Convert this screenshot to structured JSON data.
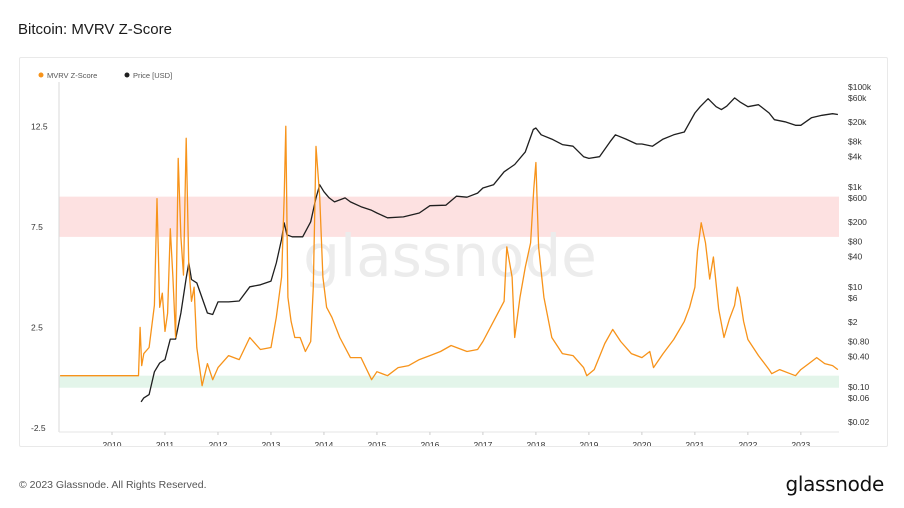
{
  "header": {
    "title": "Bitcoin: MVRV Z-Score"
  },
  "footer": {
    "copyright": "© 2023 Glassnode. All Rights Reserved.",
    "brand": "glassnode"
  },
  "watermark": "glassnode",
  "colors": {
    "zscore": "#f7931a",
    "price": "#1f1f1f",
    "red_band": "#fde1e1",
    "green_band": "#e3f5ea"
  },
  "chart_data": {
    "type": "line",
    "title": "Bitcoin: MVRV Z-Score",
    "legend": {
      "position": "top-left",
      "entries": [
        "MVRV Z-Score",
        "Price [USD]"
      ]
    },
    "x_ticks": [
      "2010",
      "2011",
      "2012",
      "2013",
      "2014",
      "2015",
      "2016",
      "2017",
      "2018",
      "2019",
      "2020",
      "2021",
      "2022",
      "2023"
    ],
    "xlim": [
      2009.0,
      2023.72
    ],
    "left_axis": {
      "ticks": [
        "12.5",
        "7.5",
        "2.5",
        "-2.5"
      ],
      "tick_values": [
        12.5,
        7.5,
        2.5,
        -2.5
      ],
      "ylim": [
        -2.7,
        14.7
      ]
    },
    "right_axis": {
      "scale": "log",
      "ticks": [
        "$100k",
        "$60k",
        "$20k",
        "$8k",
        "$4k",
        "$1k",
        "$600",
        "$200",
        "$80",
        "$40",
        "$10",
        "$6",
        "$2",
        "$0.80",
        "$0.40",
        "$0.10",
        "$0.06",
        "$0.02"
      ],
      "tick_values": [
        100000,
        60000,
        20000,
        8000,
        4000,
        1000,
        600,
        200,
        80,
        40,
        10,
        6,
        2,
        0.8,
        0.4,
        0.1,
        0.06,
        0.02
      ]
    },
    "bands": [
      {
        "name": "red_zone",
        "from": 7.0,
        "to": 9.0
      },
      {
        "name": "green_zone",
        "from": -0.5,
        "to": 0.1
      }
    ],
    "series": [
      {
        "name": "MVRV Z-Score",
        "x": [
          2009.02,
          2010.5,
          2010.53,
          2010.56,
          2010.6,
          2010.7,
          2010.8,
          2010.85,
          2010.9,
          2010.95,
          2011.0,
          2011.05,
          2011.1,
          2011.15,
          2011.2,
          2011.25,
          2011.3,
          2011.35,
          2011.4,
          2011.45,
          2011.5,
          2011.55,
          2011.6,
          2011.7,
          2011.8,
          2011.9,
          2012.0,
          2012.2,
          2012.4,
          2012.6,
          2012.8,
          2013.0,
          2013.1,
          2013.2,
          2013.25,
          2013.28,
          2013.32,
          2013.38,
          2013.45,
          2013.55,
          2013.65,
          2013.75,
          2013.8,
          2013.85,
          2013.92,
          2013.98,
          2014.05,
          2014.15,
          2014.3,
          2014.5,
          2014.7,
          2014.9,
          2015.0,
          2015.2,
          2015.4,
          2015.6,
          2015.8,
          2016.0,
          2016.2,
          2016.4,
          2016.5,
          2016.7,
          2016.9,
          2017.0,
          2017.2,
          2017.4,
          2017.45,
          2017.55,
          2017.6,
          2017.7,
          2017.8,
          2017.9,
          2017.96,
          2018.0,
          2018.05,
          2018.15,
          2018.3,
          2018.5,
          2018.7,
          2018.9,
          2018.96,
          2019.1,
          2019.3,
          2019.45,
          2019.6,
          2019.8,
          2020.0,
          2020.15,
          2020.22,
          2020.4,
          2020.6,
          2020.8,
          2020.9,
          2021.0,
          2021.05,
          2021.12,
          2021.2,
          2021.28,
          2021.35,
          2021.45,
          2021.55,
          2021.65,
          2021.75,
          2021.8,
          2021.85,
          2021.92,
          2022.0,
          2022.2,
          2022.4,
          2022.45,
          2022.6,
          2022.8,
          2022.9,
          2023.0,
          2023.15,
          2023.3,
          2023.45,
          2023.6,
          2023.7
        ],
        "values": [
          0.1,
          0.1,
          2.5,
          0.6,
          1.2,
          1.5,
          3.6,
          8.9,
          3.5,
          4.2,
          2.3,
          3.2,
          7.4,
          5.0,
          2.0,
          10.9,
          7.0,
          5.1,
          11.9,
          5.5,
          3.8,
          4.5,
          1.5,
          -0.4,
          0.7,
          -0.1,
          0.5,
          1.1,
          0.9,
          2.0,
          1.4,
          1.5,
          3.0,
          5.0,
          9.0,
          12.5,
          4.0,
          2.8,
          2.0,
          2.0,
          1.3,
          1.8,
          4.5,
          11.5,
          9.0,
          5.0,
          3.5,
          3.0,
          2.0,
          1.0,
          1.0,
          -0.1,
          0.3,
          0.1,
          0.5,
          0.6,
          0.9,
          1.1,
          1.3,
          1.6,
          1.5,
          1.3,
          1.4,
          1.8,
          2.8,
          3.8,
          6.5,
          5.0,
          2.0,
          4.0,
          5.5,
          6.7,
          9.4,
          10.7,
          6.5,
          4.0,
          2.0,
          1.2,
          1.1,
          0.5,
          0.1,
          0.4,
          1.7,
          2.4,
          1.8,
          1.2,
          1.0,
          1.3,
          0.5,
          1.2,
          1.9,
          2.8,
          3.5,
          4.5,
          6.3,
          7.7,
          6.7,
          4.9,
          6.0,
          3.4,
          2.0,
          2.9,
          3.6,
          4.5,
          4.0,
          2.8,
          1.9,
          1.1,
          0.4,
          0.2,
          0.4,
          0.2,
          0.1,
          0.4,
          0.7,
          1.0,
          0.7,
          0.6,
          0.4
        ]
      },
      {
        "name": "Price [USD]",
        "x": [
          2010.55,
          2010.6,
          2010.7,
          2010.8,
          2010.9,
          2011.0,
          2011.1,
          2011.2,
          2011.3,
          2011.4,
          2011.45,
          2011.5,
          2011.6,
          2011.8,
          2011.9,
          2012.0,
          2012.2,
          2012.4,
          2012.6,
          2012.8,
          2013.0,
          2013.1,
          2013.2,
          2013.25,
          2013.3,
          2013.4,
          2013.6,
          2013.75,
          2013.85,
          2013.92,
          2014.0,
          2014.1,
          2014.2,
          2014.4,
          2014.5,
          2014.7,
          2014.9,
          2015.0,
          2015.2,
          2015.5,
          2015.8,
          2016.0,
          2016.3,
          2016.5,
          2016.7,
          2016.9,
          2017.0,
          2017.2,
          2017.4,
          2017.6,
          2017.8,
          2017.95,
          2018.0,
          2018.1,
          2018.3,
          2018.5,
          2018.7,
          2018.9,
          2019.0,
          2019.2,
          2019.4,
          2019.5,
          2019.7,
          2019.9,
          2020.0,
          2020.2,
          2020.4,
          2020.6,
          2020.8,
          2021.0,
          2021.1,
          2021.25,
          2021.4,
          2021.5,
          2021.6,
          2021.75,
          2021.85,
          2022.0,
          2022.2,
          2022.4,
          2022.5,
          2022.7,
          2022.9,
          2023.0,
          2023.2,
          2023.4,
          2023.6,
          2023.7
        ],
        "values": [
          0.05,
          0.06,
          0.07,
          0.2,
          0.3,
          0.35,
          0.9,
          0.9,
          3.0,
          15,
          30,
          14,
          12,
          3,
          2.8,
          5,
          5,
          5.2,
          10,
          11,
          13,
          30,
          90,
          190,
          110,
          100,
          100,
          200,
          600,
          1100,
          800,
          600,
          500,
          600,
          500,
          400,
          340,
          300,
          240,
          250,
          300,
          420,
          430,
          650,
          620,
          750,
          950,
          1100,
          2000,
          2800,
          5000,
          14000,
          15000,
          11000,
          9000,
          7000,
          6500,
          4000,
          3700,
          4000,
          8000,
          11000,
          9000,
          7200,
          7200,
          6500,
          9000,
          11000,
          12500,
          30000,
          40000,
          58000,
          40000,
          35000,
          41000,
          60000,
          50000,
          40000,
          44000,
          30000,
          22000,
          20000,
          17000,
          17000,
          24000,
          27000,
          29000,
          28000
        ]
      }
    ]
  }
}
